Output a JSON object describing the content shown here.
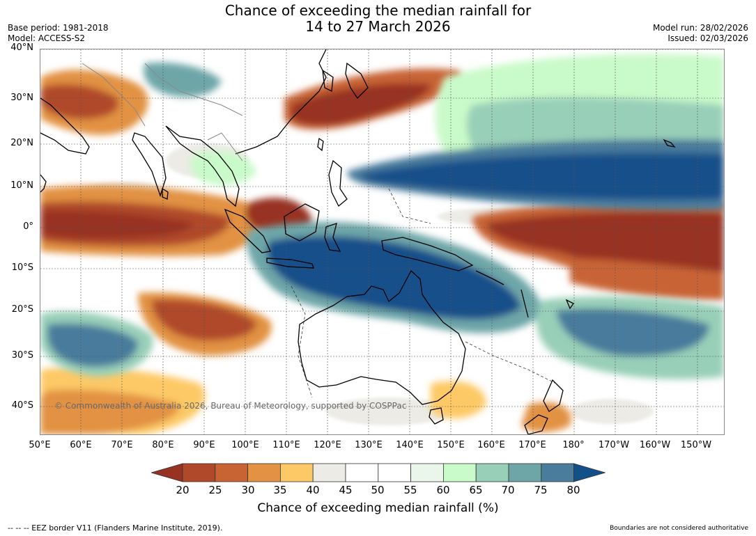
{
  "title_line1": "Chance of exceeding the median rainfall for",
  "title_line2": "14 to 27 March 2026",
  "meta_left": [
    "Base period: 1981-2018",
    "Model: ACCESS-S2"
  ],
  "meta_right": [
    "Model run: 28/02/2026",
    "Issued: 02/03/2026"
  ],
  "latitude_labels": [
    "40°N",
    "30°N",
    "20°N",
    "10°N",
    "0°",
    "10°S",
    "20°S",
    "30°S",
    "40°S"
  ],
  "longitude_labels": [
    "50°E",
    "60°E",
    "70°E",
    "80°E",
    "90°E",
    "100°E",
    "110°E",
    "120°E",
    "130°E",
    "140°E",
    "150°E",
    "160°E",
    "170°E",
    "180°",
    "170°W",
    "160°W",
    "150°W"
  ],
  "copyright": "© Commonwealth of Australia 2026, Bureau of Meteorology, supported by COSPPac",
  "legend": {
    "title": "Chance of exceeding median rainfall (%)",
    "ticks": [
      "20",
      "25",
      "30",
      "35",
      "40",
      "45",
      "50",
      "55",
      "60",
      "65",
      "70",
      "75",
      "80"
    ],
    "colors": [
      "#983222",
      "#b0492a",
      "#c86434",
      "#e29242",
      "#fdc966",
      "#ecebe6",
      "#ffffff",
      "#ffffff",
      "#eaf6ea",
      "#c9fac9",
      "#98cfb8",
      "#6ea6a8",
      "#4a7c9c",
      "#13508a"
    ]
  },
  "footer_left": "--  --  -- EEZ border V11 (Flanders Marine Institute, 2019).",
  "footer_right": "Boundaries are not considered authoritative"
}
